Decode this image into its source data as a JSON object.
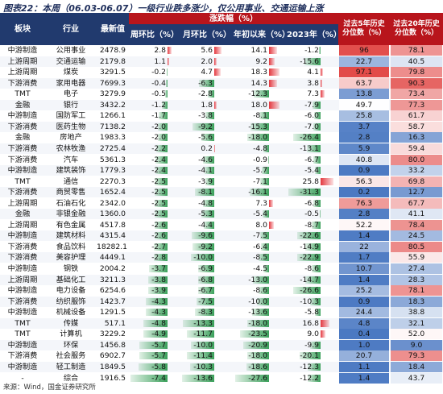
{
  "title": "图表22：本周（06.03-06.07）一级行业跌多涨少，仅公用事业、交通运输上涨",
  "headers": {
    "sector": "板块",
    "industry": "行业",
    "latest": "最新值",
    "wow": "周环比（%）",
    "group": "涨跌幅（%）",
    "mom": "月环比（%）",
    "ytd": "年初以来（%）",
    "y2023": "2023年（%）",
    "pct5": "过去5年历史分位数（%）",
    "pct20": "过去20年历史分位数（%）"
  },
  "rows": [
    {
      "sector": "中游制造",
      "industry": "公用事业",
      "latest": "2478.9",
      "wow": "2.8",
      "mom": "5.6",
      "ytd": "14.1",
      "y2023": "-1.2",
      "p5": "96",
      "p20": "78.1"
    },
    {
      "sector": "上游周期",
      "industry": "交通运输",
      "latest": "2179.8",
      "wow": "1.1",
      "mom": "2.0",
      "ytd": "9.2",
      "y2023": "-15.6",
      "p5": "22.7",
      "p20": "40.5"
    },
    {
      "sector": "上游周期",
      "industry": "煤炭",
      "latest": "3291.5",
      "wow": "-0.2",
      "mom": "4.7",
      "ytd": "18.3",
      "y2023": "4.1",
      "p5": "97.1",
      "p20": "79.8"
    },
    {
      "sector": "下游消费",
      "industry": "家用电器",
      "latest": "7699.3",
      "wow": "-0.4",
      "mom": "-6.3",
      "ytd": "14.3",
      "y2023": "3.8",
      "p5": "63.7",
      "p20": "90.3"
    },
    {
      "sector": "TMT",
      "industry": "电子",
      "latest": "3279.9",
      "wow": "-0.5",
      "mom": "-2.8",
      "ytd": "-12.3",
      "y2023": "7.3",
      "p5": "13.8",
      "p20": "73.4"
    },
    {
      "sector": "金融",
      "industry": "银行",
      "latest": "3432.2",
      "wow": "-1.2",
      "mom": "1.8",
      "ytd": "18.0",
      "y2023": "-7.9",
      "p5": "49.7",
      "p20": "77.3"
    },
    {
      "sector": "中游制造",
      "industry": "国防军工",
      "latest": "1266.1",
      "wow": "-1.7",
      "mom": "-3.8",
      "ytd": "-8.1",
      "y2023": "-6.0",
      "p5": "25.8",
      "p20": "61.7"
    },
    {
      "sector": "下游消费",
      "industry": "医药生物",
      "latest": "7138.2",
      "wow": "-2.0",
      "mom": "-9.2",
      "ytd": "-15.3",
      "y2023": "-7.0",
      "p5": "3.7",
      "p20": "58.7"
    },
    {
      "sector": "金融",
      "industry": "房地产",
      "latest": "1983.3",
      "wow": "-2.0",
      "mom": "-5.6",
      "ytd": "-18.0",
      "y2023": "-26.4",
      "p5": "2.8",
      "p20": "16.3"
    },
    {
      "sector": "下游消费",
      "industry": "农林牧渔",
      "latest": "2725.4",
      "wow": "-2.2",
      "mom": "0.2",
      "ytd": "-4.8",
      "y2023": "-13.1",
      "p5": "5.9",
      "p20": "59.4"
    },
    {
      "sector": "下游消费",
      "industry": "汽车",
      "latest": "5361.3",
      "wow": "-2.4",
      "mom": "-4.6",
      "ytd": "-0.9",
      "y2023": "-6.7",
      "p5": "40.8",
      "p20": "80.0"
    },
    {
      "sector": "中游制造",
      "industry": "建筑装饰",
      "latest": "1779.3",
      "wow": "-2.4",
      "mom": "-4.1",
      "ytd": "-5.7",
      "y2023": "-5.4",
      "p5": "0.9",
      "p20": "33.2"
    },
    {
      "sector": "TMT",
      "industry": "通信",
      "latest": "2270.3",
      "wow": "-2.5",
      "mom": "-3.9",
      "ytd": "-7.1",
      "y2023": "25.8",
      "p5": "56.3",
      "p20": "69.8"
    },
    {
      "sector": "下游消费",
      "industry": "商贸零售",
      "latest": "1652.4",
      "wow": "-2.5",
      "mom": "-8.1",
      "ytd": "-16.1",
      "y2023": "-31.3",
      "p5": "0.2",
      "p20": "12.7"
    },
    {
      "sector": "上游周期",
      "industry": "石油石化",
      "latest": "2342.0",
      "wow": "-2.5",
      "mom": "-4.8",
      "ytd": "7.3",
      "y2023": "-6.8",
      "p5": "76.3",
      "p20": "67.7"
    },
    {
      "sector": "金融",
      "industry": "非银金融",
      "latest": "1360.0",
      "wow": "-2.5",
      "mom": "-5.3",
      "ytd": "-5.4",
      "y2023": "-0.5",
      "p5": "2.8",
      "p20": "41.1"
    },
    {
      "sector": "上游周期",
      "industry": "有色金属",
      "latest": "4517.8",
      "wow": "-2.6",
      "mom": "-4.4",
      "ytd": "8.0",
      "y2023": "-8.7",
      "p5": "52.2",
      "p20": "78.4"
    },
    {
      "sector": "中游制造",
      "industry": "建筑材料",
      "latest": "4315.4",
      "wow": "-2.6",
      "mom": "-9.6",
      "ytd": "-7.5",
      "y2023": "-22.6",
      "p5": "1.4",
      "p20": "24.5"
    },
    {
      "sector": "下游消费",
      "industry": "食品饮料",
      "latest": "18282.1",
      "wow": "-2.7",
      "mom": "-9.2",
      "ytd": "-6.4",
      "y2023": "-14.9",
      "p5": "22",
      "p20": "80.5"
    },
    {
      "sector": "下游消费",
      "industry": "美容护理",
      "latest": "4449.1",
      "wow": "-2.8",
      "mom": "-10.0",
      "ytd": "-8.5",
      "y2023": "-22.9",
      "p5": "1.7",
      "p20": "55.9"
    },
    {
      "sector": "中游制造",
      "industry": "钢铁",
      "latest": "2004.2",
      "wow": "-3.7",
      "mom": "-6.9",
      "ytd": "-4.5",
      "y2023": "-8.6",
      "p5": "10.7",
      "p20": "27.4"
    },
    {
      "sector": "上游周期",
      "industry": "基础化工",
      "latest": "3211.3",
      "wow": "-3.8",
      "mom": "-6.8",
      "ytd": "-13.0",
      "y2023": "-14.7",
      "p5": "1.4",
      "p20": "28.3"
    },
    {
      "sector": "中游制造",
      "industry": "电力设备",
      "latest": "6254.6",
      "wow": "-3.9",
      "mom": "-6.7",
      "ytd": "-8.6",
      "y2023": "-26.6",
      "p5": "25.2",
      "p20": "78.1"
    },
    {
      "sector": "下游消费",
      "industry": "纺织服饰",
      "latest": "1423.7",
      "wow": "-4.3",
      "mom": "-7.5",
      "ytd": "-10.0",
      "y2023": "-10.3",
      "p5": "0.9",
      "p20": "18.3"
    },
    {
      "sector": "中游制造",
      "industry": "机械设备",
      "latest": "1291.5",
      "wow": "-4.3",
      "mom": "-8.3",
      "ytd": "-13.6",
      "y2023": "-5.8",
      "p5": "24.4",
      "p20": "38.8"
    },
    {
      "sector": "TMT",
      "industry": "传媒",
      "latest": "517.1",
      "wow": "-4.8",
      "mom": "-13.3",
      "ytd": "-18.0",
      "y2023": "16.8",
      "p5": "4.8",
      "p20": "32.1"
    },
    {
      "sector": "TMT",
      "industry": "计算机",
      "latest": "3229.2",
      "wow": "-4.9",
      "mom": "-11.7",
      "ytd": "-23.5",
      "y2023": "9.0",
      "p5": "0.4",
      "p20": "52.0"
    },
    {
      "sector": "中游制造",
      "industry": "环保",
      "latest": "1456.8",
      "wow": "-5.7",
      "mom": "-10.0",
      "ytd": "-20.9",
      "y2023": "-9.9",
      "p5": "1.0",
      "p20": "9.0"
    },
    {
      "sector": "下游消费",
      "industry": "社会服务",
      "latest": "6902.7",
      "wow": "-5.7",
      "mom": "-11.4",
      "ytd": "-18.0",
      "y2023": "-20.1",
      "p5": "20.7",
      "p20": "79.3"
    },
    {
      "sector": "中游制造",
      "industry": "轻工制造",
      "latest": "1849.5",
      "wow": "-5.8",
      "mom": "-10.3",
      "ytd": "-18.6",
      "y2023": "-12.3",
      "p5": "1.1",
      "p20": "18.4"
    },
    {
      "sector": "-",
      "industry": "综合",
      "latest": "1916.5",
      "wow": "-7.4",
      "mom": "-13.6",
      "ytd": "-27.6",
      "y2023": "-12.2",
      "p5": "1.4",
      "p20": "43.7"
    }
  ],
  "source": "来源：Wind，国金证券研究所",
  "colors": {
    "header_blue": "#213a6e",
    "header_red": "#b8151c",
    "bar_red": "#e4383f",
    "bar_green": "#3aa05a"
  }
}
